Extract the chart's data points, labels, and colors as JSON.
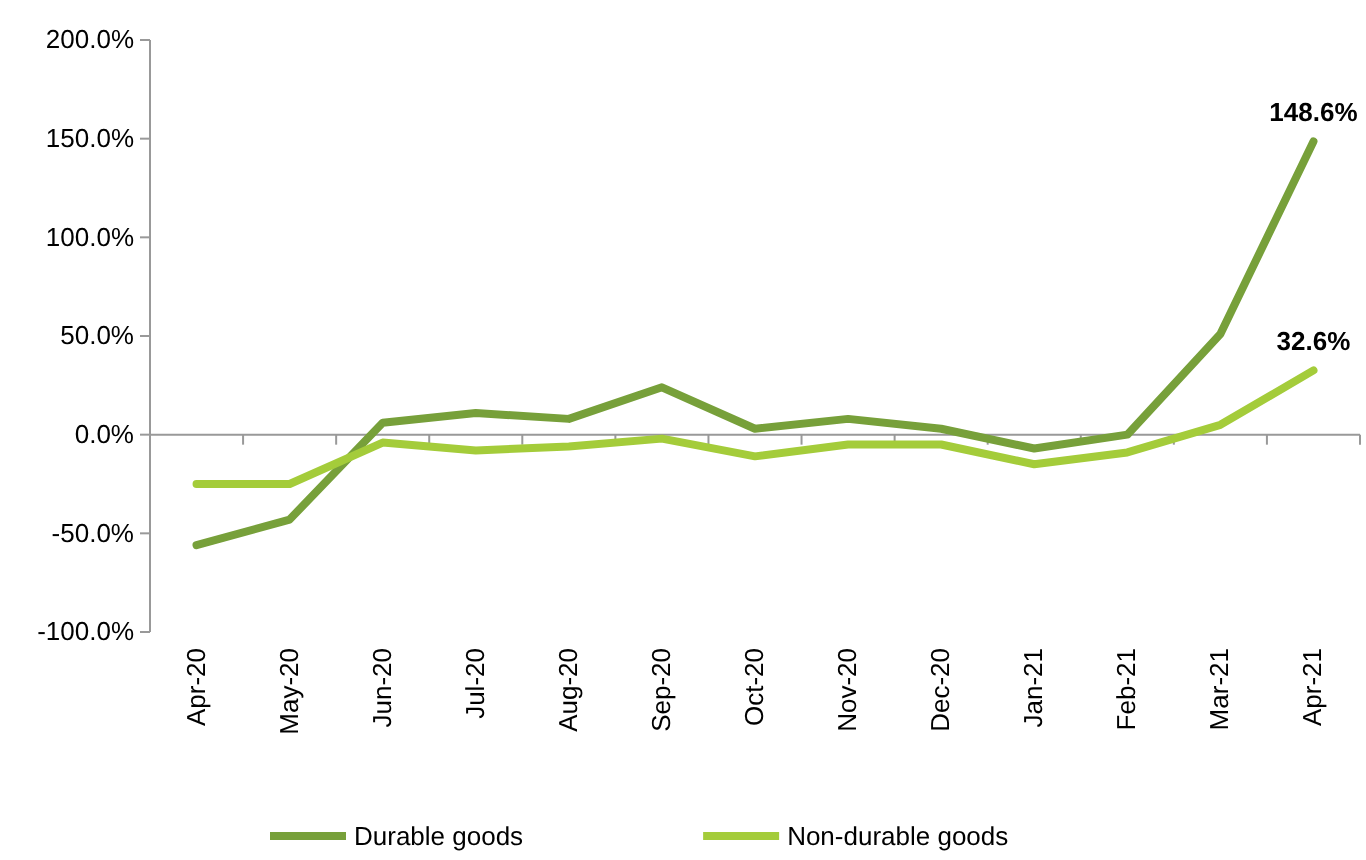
{
  "chart_data": {
    "type": "line",
    "categories": [
      "Apr-20",
      "May-20",
      "Jun-20",
      "Jul-20",
      "Aug-20",
      "Sep-20",
      "Oct-20",
      "Nov-20",
      "Dec-20",
      "Jan-21",
      "Feb-21",
      "Mar-21",
      "Apr-21"
    ],
    "series": [
      {
        "name": "Durable goods",
        "color": "#77a03a",
        "values": [
          -56,
          -43,
          6,
          11,
          8,
          24,
          3,
          8,
          3,
          -7,
          0,
          51,
          148.6
        ],
        "value_labels": [
          null,
          null,
          null,
          null,
          null,
          null,
          null,
          null,
          null,
          null,
          null,
          null,
          "148.6%"
        ]
      },
      {
        "name": "Non-durable goods",
        "color": "#a4cc3a",
        "values": [
          -25,
          -25,
          -4,
          -8,
          -6,
          -2,
          -11,
          -5,
          -5,
          -15,
          -9,
          5,
          32.6
        ],
        "value_labels": [
          null,
          null,
          null,
          null,
          null,
          null,
          null,
          null,
          null,
          null,
          null,
          null,
          "32.6%"
        ]
      }
    ],
    "ylim": [
      -100,
      200
    ],
    "yticks": [
      {
        "value": -100,
        "label": "-100.0%"
      },
      {
        "value": -50,
        "label": "-50.0%"
      },
      {
        "value": 0,
        "label": "0.0%"
      },
      {
        "value": 50,
        "label": "50.0%"
      },
      {
        "value": 100,
        "label": "100.0%"
      },
      {
        "value": 150,
        "label": "150.0%"
      },
      {
        "value": 200,
        "label": "200.0%"
      }
    ],
    "legend": "bottom",
    "marker": "none",
    "line_style": "solid"
  }
}
